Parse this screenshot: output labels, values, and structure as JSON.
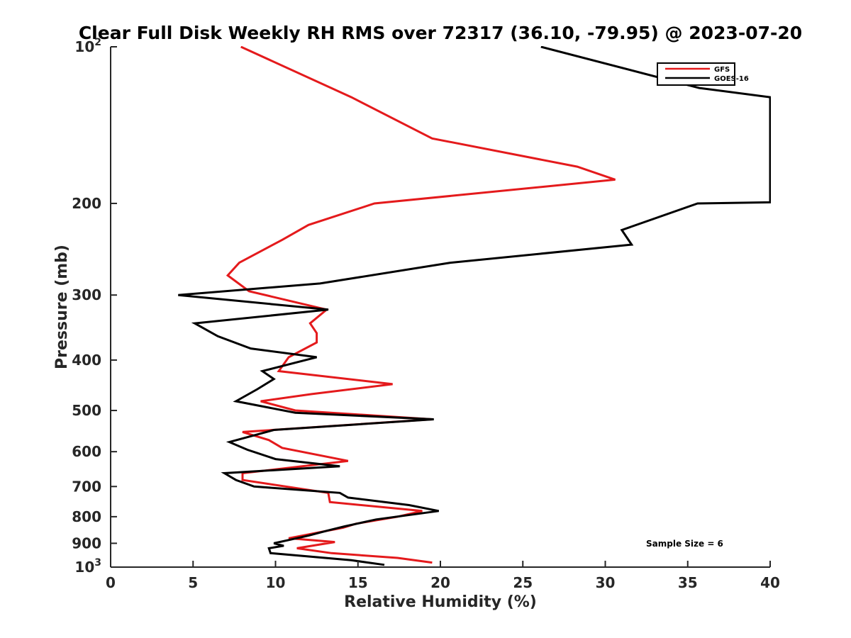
{
  "chart_data": {
    "type": "line",
    "title": "Clear Full Disk Weekly RH RMS over 72317 (36.10, -79.95) @ 2023-07-20",
    "xlabel": "Relative Humidity (%)",
    "ylabel": "Pressure (mb)",
    "xlim": [
      0,
      40
    ],
    "ylim": [
      100,
      1000
    ],
    "y_scale": "log",
    "y_reversed": true,
    "grid": false,
    "legend_position": "top-right",
    "x_ticks": [
      "0",
      "5",
      "10",
      "15",
      "20",
      "25",
      "30",
      "35",
      "40"
    ],
    "y_ticks": [
      {
        "value": 100,
        "base": "10",
        "exp": "2"
      },
      {
        "value": 200,
        "label": "200"
      },
      {
        "value": 300,
        "label": "300"
      },
      {
        "value": 400,
        "label": "400"
      },
      {
        "value": 500,
        "label": "500"
      },
      {
        "value": 600,
        "label": "600"
      },
      {
        "value": 700,
        "label": "700"
      },
      {
        "value": 800,
        "label": "800"
      },
      {
        "value": 900,
        "label": "900"
      },
      {
        "value": 1000,
        "base": "10",
        "exp": "3"
      }
    ],
    "annotation": "Sample Size = 6",
    "series": [
      {
        "name": "GFS",
        "color": "#e41a1c",
        "points": [
          [
            7.9,
            100
          ],
          [
            14.6,
            125
          ],
          [
            19.5,
            150
          ],
          [
            28.3,
            170
          ],
          [
            30.6,
            180
          ],
          [
            16.0,
            200
          ],
          [
            12.0,
            220
          ],
          [
            10.4,
            235
          ],
          [
            7.8,
            260
          ],
          [
            7.1,
            275
          ],
          [
            8.4,
            295
          ],
          [
            13.1,
            320
          ],
          [
            12.1,
            340
          ],
          [
            12.5,
            355
          ],
          [
            12.5,
            370
          ],
          [
            10.8,
            395
          ],
          [
            10.2,
            420
          ],
          [
            17.1,
            445
          ],
          [
            12.2,
            465
          ],
          [
            9.1,
            480
          ],
          [
            11.2,
            500
          ],
          [
            19.5,
            520
          ],
          [
            8.0,
            550
          ],
          [
            9.6,
            570
          ],
          [
            10.4,
            590
          ],
          [
            14.4,
            625
          ],
          [
            8.0,
            660
          ],
          [
            8.0,
            680
          ],
          [
            13.2,
            720
          ],
          [
            13.3,
            750
          ],
          [
            18.9,
            780
          ],
          [
            17.4,
            800
          ],
          [
            14.9,
            825
          ],
          [
            14.1,
            840
          ],
          [
            10.8,
            880
          ],
          [
            13.6,
            895
          ],
          [
            11.3,
            920
          ],
          [
            13.4,
            940
          ],
          [
            17.4,
            960
          ],
          [
            19.5,
            980
          ]
        ]
      },
      {
        "name": "GOES-16",
        "color": "#000000",
        "points": [
          [
            26.1,
            100
          ],
          [
            35.7,
            120
          ],
          [
            40.0,
            125
          ],
          [
            40.0,
            199
          ],
          [
            35.6,
            200
          ],
          [
            31.0,
            225
          ],
          [
            31.6,
            240
          ],
          [
            20.6,
            260
          ],
          [
            12.7,
            285
          ],
          [
            4.1,
            300
          ],
          [
            13.2,
            320
          ],
          [
            5.1,
            340
          ],
          [
            6.5,
            360
          ],
          [
            8.5,
            380
          ],
          [
            12.5,
            395
          ],
          [
            9.2,
            420
          ],
          [
            9.9,
            435
          ],
          [
            8.9,
            455
          ],
          [
            7.6,
            480
          ],
          [
            11.2,
            505
          ],
          [
            19.6,
            520
          ],
          [
            9.9,
            545
          ],
          [
            7.2,
            575
          ],
          [
            8.3,
            595
          ],
          [
            10.0,
            620
          ],
          [
            13.9,
            640
          ],
          [
            6.9,
            660
          ],
          [
            7.6,
            680
          ],
          [
            8.7,
            700
          ],
          [
            13.9,
            720
          ],
          [
            14.4,
            735
          ],
          [
            18.1,
            760
          ],
          [
            19.9,
            780
          ],
          [
            16.1,
            810
          ],
          [
            14.2,
            835
          ],
          [
            13.2,
            850
          ],
          [
            12.0,
            870
          ],
          [
            9.9,
            900
          ],
          [
            10.5,
            910
          ],
          [
            9.6,
            920
          ],
          [
            9.7,
            940
          ],
          [
            14.6,
            970
          ],
          [
            16.6,
            990
          ]
        ]
      }
    ]
  }
}
